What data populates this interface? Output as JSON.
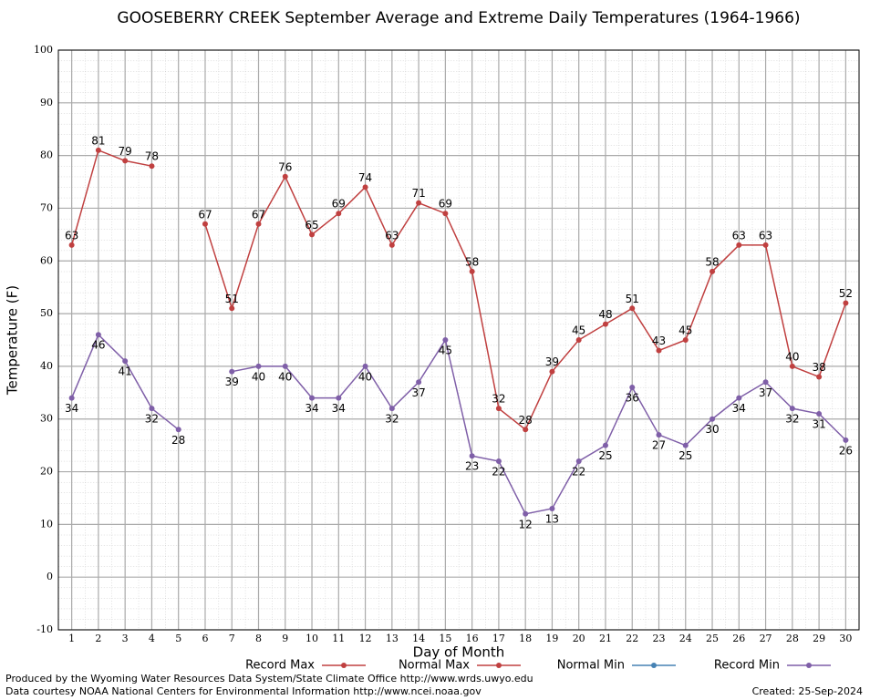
{
  "chart_data": {
    "type": "line",
    "title": "GOOSEBERRY CREEK September Average and Extreme Daily Temperatures (1964-1966)",
    "x_label": "Day of Month",
    "y_label": "Temperature (F)",
    "x": [
      1,
      2,
      3,
      4,
      5,
      6,
      7,
      8,
      9,
      10,
      11,
      12,
      13,
      14,
      15,
      16,
      17,
      18,
      19,
      20,
      21,
      22,
      23,
      24,
      25,
      26,
      27,
      28,
      29,
      30
    ],
    "xlim": [
      0.5,
      30.5
    ],
    "xticks": [
      1,
      2,
      3,
      4,
      5,
      6,
      7,
      8,
      9,
      10,
      11,
      12,
      13,
      14,
      15,
      16,
      17,
      18,
      19,
      20,
      21,
      22,
      23,
      24,
      25,
      26,
      27,
      28,
      29,
      30
    ],
    "ylim": [
      -10,
      100
    ],
    "yticks": [
      -10,
      0,
      10,
      20,
      30,
      40,
      50,
      60,
      70,
      80,
      90,
      100
    ],
    "grid": true,
    "series": [
      {
        "name": "Record Max",
        "color": "#c04040",
        "values": [
          63,
          81,
          79,
          78,
          null,
          67,
          51,
          67,
          76,
          65,
          69,
          74,
          63,
          71,
          69,
          58,
          32,
          28,
          39,
          45,
          48,
          51,
          43,
          45,
          58,
          63,
          63,
          40,
          38,
          52
        ]
      },
      {
        "name": "Normal Max",
        "color": "#c04040",
        "values": [
          null,
          null,
          null,
          null,
          null,
          null,
          null,
          null,
          null,
          null,
          null,
          null,
          null,
          null,
          null,
          null,
          null,
          null,
          null,
          null,
          null,
          null,
          null,
          null,
          null,
          null,
          null,
          null,
          null,
          null
        ]
      },
      {
        "name": "Normal Min",
        "color": "#4682b4",
        "values": [
          null,
          null,
          null,
          null,
          null,
          null,
          null,
          null,
          null,
          null,
          null,
          null,
          null,
          null,
          null,
          null,
          null,
          null,
          null,
          null,
          null,
          null,
          null,
          null,
          null,
          null,
          null,
          null,
          null,
          null
        ]
      },
      {
        "name": "Record Min",
        "color": "#7f5fa8",
        "values": [
          34,
          46,
          41,
          32,
          28,
          null,
          39,
          40,
          40,
          34,
          34,
          40,
          32,
          37,
          45,
          23,
          22,
          12,
          13,
          22,
          25,
          36,
          27,
          25,
          30,
          34,
          37,
          32,
          31,
          26
        ]
      }
    ],
    "footer": [
      "Produced by the Wyoming Water Resources Data System/State Climate Office http://www.wrds.uwyo.edu",
      "Data courtesy NOAA National Centers for Environmental Information http://www.ncei.noaa.gov"
    ],
    "created": "Created:  25-Sep-2024"
  }
}
